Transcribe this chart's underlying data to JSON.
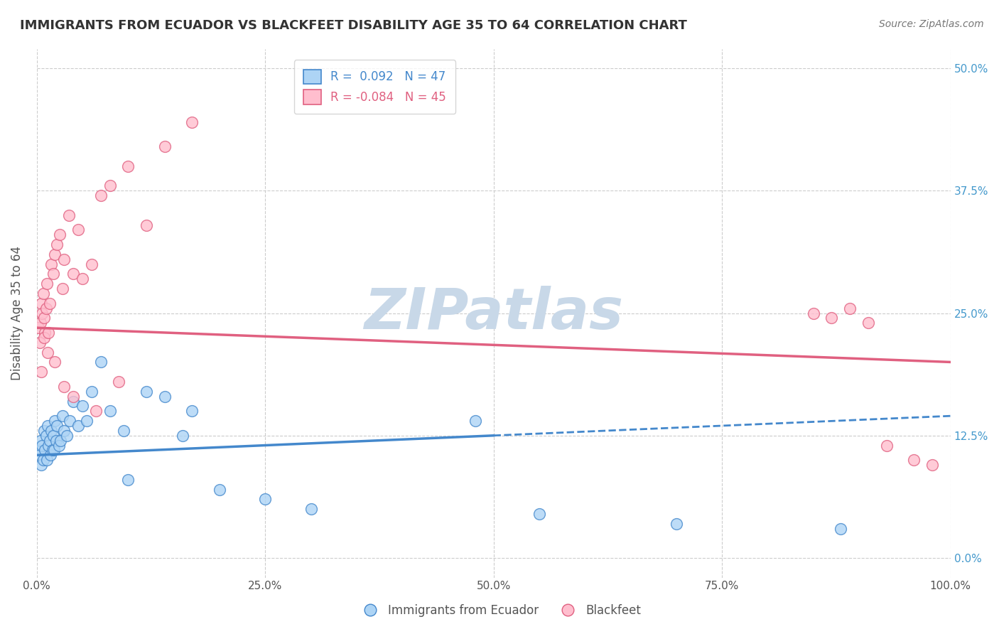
{
  "title": "IMMIGRANTS FROM ECUADOR VS BLACKFEET DISABILITY AGE 35 TO 64 CORRELATION CHART",
  "source": "Source: ZipAtlas.com",
  "ylabel": "Disability Age 35 to 64",
  "legend_label_blue": "Immigrants from Ecuador",
  "legend_label_pink": "Blackfeet",
  "R_blue": 0.092,
  "N_blue": 47,
  "R_pink": -0.084,
  "N_pink": 45,
  "xlim": [
    0.0,
    100.0
  ],
  "ylim": [
    -2.0,
    52.0
  ],
  "yticks": [
    0.0,
    12.5,
    25.0,
    37.5,
    50.0
  ],
  "xticks": [
    0.0,
    25.0,
    50.0,
    75.0,
    100.0
  ],
  "xtick_labels": [
    "0.0%",
    "25.0%",
    "50.0%",
    "75.0%",
    "100.0%"
  ],
  "ytick_labels": [
    "0.0%",
    "12.5%",
    "25.0%",
    "37.5%",
    "50.0%"
  ],
  "color_blue": "#ADD4F5",
  "color_pink": "#FFBECE",
  "line_color_blue": "#4488CC",
  "line_color_pink": "#E06080",
  "background_color": "#FFFFFF",
  "grid_color": "#CCCCCC",
  "title_color": "#333333",
  "axis_label_color": "#555555",
  "tick_color_right": "#4499CC",
  "watermark_text": "ZIPatlas",
  "watermark_color": "#C8D8E8",
  "blue_scatter_x": [
    0.2,
    0.3,
    0.4,
    0.5,
    0.6,
    0.7,
    0.8,
    0.9,
    1.0,
    1.1,
    1.2,
    1.3,
    1.4,
    1.5,
    1.6,
    1.7,
    1.8,
    1.9,
    2.0,
    2.1,
    2.2,
    2.4,
    2.6,
    2.8,
    3.0,
    3.3,
    3.6,
    4.0,
    4.5,
    5.0,
    5.5,
    6.0,
    7.0,
    8.0,
    9.5,
    10.0,
    12.0,
    14.0,
    16.0,
    17.0,
    20.0,
    25.0,
    30.0,
    48.0,
    55.0,
    70.0,
    88.0
  ],
  "blue_scatter_y": [
    11.0,
    10.5,
    12.0,
    9.5,
    11.5,
    10.0,
    13.0,
    11.0,
    12.5,
    10.0,
    13.5,
    11.5,
    12.0,
    10.5,
    13.0,
    11.0,
    12.5,
    11.0,
    14.0,
    12.0,
    13.5,
    11.5,
    12.0,
    14.5,
    13.0,
    12.5,
    14.0,
    16.0,
    13.5,
    15.5,
    14.0,
    17.0,
    20.0,
    15.0,
    13.0,
    8.0,
    17.0,
    16.5,
    12.5,
    15.0,
    7.0,
    6.0,
    5.0,
    14.0,
    4.5,
    3.5,
    3.0
  ],
  "pink_scatter_x": [
    0.2,
    0.3,
    0.4,
    0.5,
    0.6,
    0.7,
    0.8,
    0.9,
    1.0,
    1.1,
    1.2,
    1.4,
    1.6,
    1.8,
    2.0,
    2.2,
    2.5,
    2.8,
    3.0,
    3.5,
    4.0,
    4.5,
    5.0,
    6.0,
    7.0,
    8.0,
    10.0,
    12.0,
    14.0,
    17.0,
    85.0,
    87.0,
    89.0,
    91.0,
    93.0,
    96.0,
    98.0,
    0.5,
    0.8,
    1.3,
    2.0,
    3.0,
    4.0,
    6.5,
    9.0
  ],
  "pink_scatter_y": [
    23.5,
    22.0,
    24.0,
    26.0,
    25.0,
    27.0,
    24.5,
    23.0,
    25.5,
    28.0,
    21.0,
    26.0,
    30.0,
    29.0,
    31.0,
    32.0,
    33.0,
    27.5,
    30.5,
    35.0,
    29.0,
    33.5,
    28.5,
    30.0,
    37.0,
    38.0,
    40.0,
    34.0,
    42.0,
    44.5,
    25.0,
    24.5,
    25.5,
    24.0,
    11.5,
    10.0,
    9.5,
    19.0,
    22.5,
    23.0,
    20.0,
    17.5,
    16.5,
    15.0,
    18.0
  ],
  "blue_trend_x0": 0.0,
  "blue_trend_y0": 10.5,
  "blue_trend_x1": 100.0,
  "blue_trend_y1": 14.5,
  "blue_solid_end": 50.0,
  "pink_trend_x0": 0.0,
  "pink_trend_y0": 23.5,
  "pink_trend_x1": 100.0,
  "pink_trend_y1": 20.0
}
